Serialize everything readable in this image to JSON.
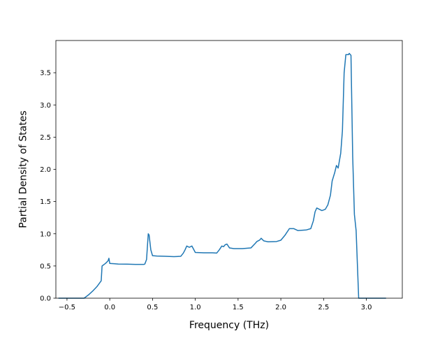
{
  "chart_data": {
    "type": "line",
    "title": "",
    "xlabel": "Frequency (THz)",
    "ylabel": "Partial Density of States",
    "xlim": [
      -0.63,
      3.42
    ],
    "ylim": [
      0.0,
      4.0
    ],
    "x_ticks": [
      -0.5,
      0.0,
      0.5,
      1.0,
      1.5,
      2.0,
      2.5,
      3.0
    ],
    "x_tick_labels": [
      "−0.5",
      "0.0",
      "0.5",
      "1.0",
      "1.5",
      "2.0",
      "2.5",
      "3.0"
    ],
    "y_ticks": [
      0.0,
      0.5,
      1.0,
      1.5,
      2.0,
      2.5,
      3.0,
      3.5
    ],
    "y_tick_labels": [
      "0.0",
      "0.5",
      "1.0",
      "1.5",
      "2.0",
      "2.5",
      "3.0",
      "3.5"
    ],
    "grid": false,
    "legend": "none",
    "color": "#1f77b4",
    "series": [
      {
        "x": [
          -0.6,
          -0.5,
          -0.3,
          -0.25,
          -0.2,
          -0.15,
          -0.1,
          -0.09,
          -0.05,
          -0.02,
          -0.01,
          0.0,
          0.05,
          0.1,
          0.2,
          0.3,
          0.4,
          0.41,
          0.43,
          0.45,
          0.46,
          0.48,
          0.5,
          0.55,
          0.65,
          0.75,
          0.83,
          0.86,
          0.88,
          0.9,
          0.93,
          0.96,
          1.0,
          1.1,
          1.2,
          1.25,
          1.28,
          1.31,
          1.33,
          1.35,
          1.37,
          1.4,
          1.45,
          1.55,
          1.65,
          1.7,
          1.72,
          1.75,
          1.77,
          1.8,
          1.85,
          1.95,
          2.0,
          2.05,
          2.1,
          2.15,
          2.2,
          2.3,
          2.35,
          2.38,
          2.4,
          2.42,
          2.45,
          2.48,
          2.52,
          2.55,
          2.58,
          2.6,
          2.63,
          2.65,
          2.67,
          2.7,
          2.72,
          2.74,
          2.76,
          2.77,
          2.79,
          2.8,
          2.82,
          2.84,
          2.86,
          2.88,
          2.91,
          2.92,
          3.0,
          3.1,
          3.23
        ],
        "y": [
          0.0,
          0.0,
          0.0,
          0.05,
          0.11,
          0.18,
          0.27,
          0.5,
          0.54,
          0.58,
          0.62,
          0.54,
          0.535,
          0.53,
          0.528,
          0.525,
          0.525,
          0.53,
          0.6,
          1.0,
          0.98,
          0.75,
          0.66,
          0.655,
          0.65,
          0.645,
          0.65,
          0.7,
          0.75,
          0.81,
          0.79,
          0.81,
          0.71,
          0.705,
          0.705,
          0.7,
          0.75,
          0.81,
          0.8,
          0.83,
          0.84,
          0.78,
          0.77,
          0.77,
          0.78,
          0.85,
          0.88,
          0.9,
          0.93,
          0.89,
          0.875,
          0.88,
          0.9,
          0.98,
          1.08,
          1.08,
          1.05,
          1.06,
          1.08,
          1.2,
          1.34,
          1.4,
          1.38,
          1.36,
          1.38,
          1.45,
          1.6,
          1.82,
          1.95,
          2.06,
          2.02,
          2.25,
          2.6,
          3.5,
          3.78,
          3.78,
          3.78,
          3.8,
          3.77,
          2.2,
          1.3,
          1.05,
          0.0,
          0.0,
          0.0,
          0.0,
          0.0
        ]
      }
    ]
  }
}
